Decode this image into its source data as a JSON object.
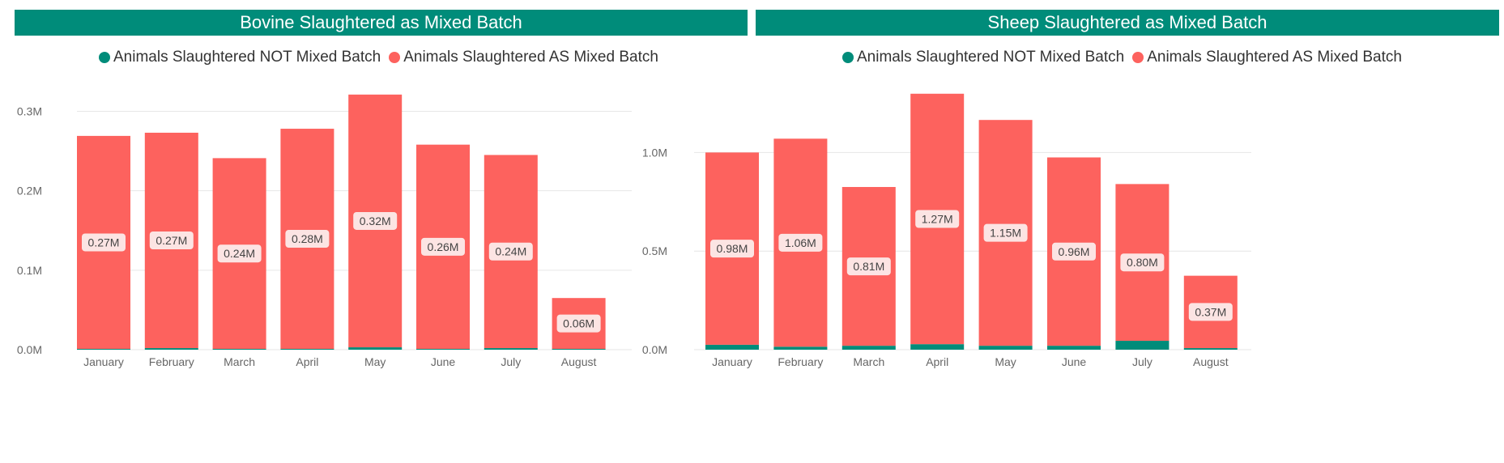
{
  "colors": {
    "title_bar": "#008C7A",
    "not_mixed": "#008C7A",
    "mixed": "#FD625E",
    "data_label_bg": "#FCE4E3",
    "axis_text": "#666666"
  },
  "chart_data": [
    {
      "type": "bar",
      "stacked": true,
      "title": "Bovine Slaughtered as Mixed Batch",
      "legend_position": "top-left",
      "grid": true,
      "categories": [
        "January",
        "February",
        "March",
        "April",
        "May",
        "June",
        "July",
        "August"
      ],
      "yticks": [
        "0.0M",
        "0.1M",
        "0.2M",
        "0.3M"
      ],
      "ytick_values": [
        0,
        0.1,
        0.2,
        0.3
      ],
      "ylim": [
        0,
        0.33
      ],
      "series": [
        {
          "name": "Animals Slaughtered NOT Mixed Batch",
          "color": "#008C7A",
          "values": [
            0.001,
            0.002,
            0.001,
            0.001,
            0.003,
            0.001,
            0.002,
            0.001
          ]
        },
        {
          "name": "Animals Slaughtered AS Mixed Batch",
          "color": "#FD625E",
          "values": [
            0.268,
            0.271,
            0.24,
            0.277,
            0.318,
            0.257,
            0.243,
            0.064
          ],
          "data_labels": [
            "0.27M",
            "0.27M",
            "0.24M",
            "0.28M",
            "0.32M",
            "0.26M",
            "0.24M",
            "0.06M"
          ]
        }
      ]
    },
    {
      "type": "bar",
      "stacked": true,
      "title": "Sheep Slaughtered as Mixed Batch",
      "legend_position": "top-left",
      "grid": true,
      "categories": [
        "January",
        "February",
        "March",
        "April",
        "May",
        "June",
        "July",
        "August"
      ],
      "yticks": [
        "0.0M",
        "0.5M",
        "1.0M"
      ],
      "ytick_values": [
        0,
        0.5,
        1.0
      ],
      "ylim": [
        0,
        1.33
      ],
      "series": [
        {
          "name": "Animals Slaughtered NOT Mixed Batch",
          "color": "#008C7A",
          "values": [
            0.025,
            0.015,
            0.02,
            0.028,
            0.02,
            0.02,
            0.045,
            0.008
          ]
        },
        {
          "name": "Animals Slaughtered AS Mixed Batch",
          "color": "#FD625E",
          "values": [
            0.975,
            1.055,
            0.805,
            1.27,
            1.145,
            0.955,
            0.795,
            0.367
          ],
          "data_labels": [
            "0.98M",
            "1.06M",
            "0.81M",
            "1.27M",
            "1.15M",
            "0.96M",
            "0.80M",
            "0.37M"
          ]
        }
      ]
    }
  ]
}
